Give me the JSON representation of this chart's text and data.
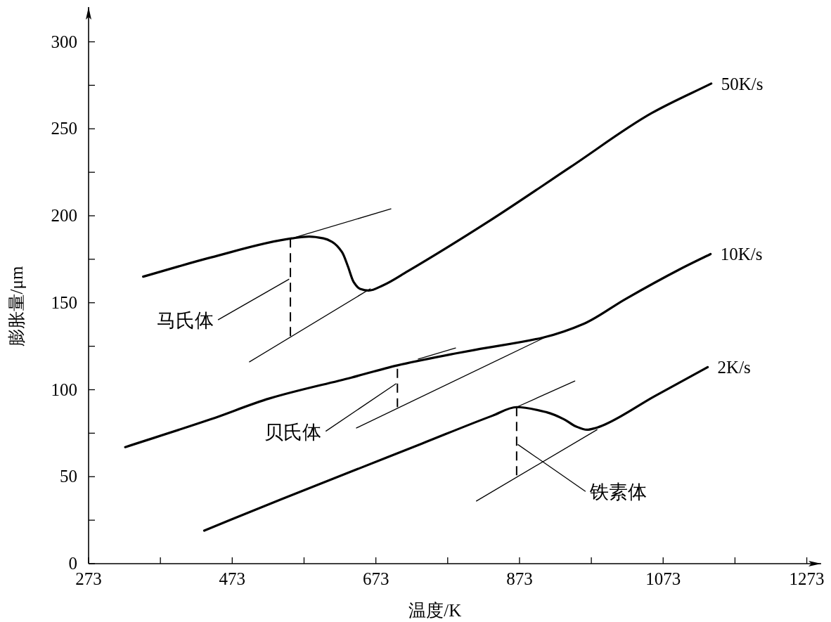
{
  "chart_data": {
    "type": "line",
    "xlabel": "温度/K",
    "ylabel": "膨胀量/μm",
    "xlim": [
      273,
      1293
    ],
    "ylim": [
      0,
      320
    ],
    "xticks": [
      273,
      {
        "value": 373,
        "label": null
      },
      473,
      {
        "value": 573,
        "label": null
      },
      673,
      {
        "value": 773,
        "label": null
      },
      873,
      {
        "value": 973,
        "label": null
      },
      1073,
      {
        "value": 1173,
        "label": null
      },
      1273
    ],
    "yticks": [
      0,
      {
        "value": 25,
        "label": null
      },
      50,
      {
        "value": 75,
        "label": null
      },
      100,
      {
        "value": 125,
        "label": null
      },
      150,
      {
        "value": 175,
        "label": null
      },
      200,
      {
        "value": 225,
        "label": null
      },
      250,
      {
        "value": 275,
        "label": null
      },
      300
    ],
    "grid": false,
    "legend": false,
    "marker": "none",
    "line_style": "solid",
    "annotations": [
      {
        "text": "马氏体",
        "x": 554,
        "y": 164
      },
      {
        "text": "贝氏体",
        "x": 703,
        "y": 104
      },
      {
        "text": "铁素体",
        "x": 869,
        "y": 69
      }
    ],
    "series": [
      {
        "name": "50K/s",
        "color": "#000000",
        "x": [
          349,
          443,
          556,
          580,
          600,
          612,
          626,
          634,
          642,
          651,
          663,
          683,
          717,
          831,
          944,
          1057,
          1140
        ],
        "values": [
          165,
          176,
          187,
          188,
          187,
          185,
          179,
          171,
          162,
          158,
          157,
          160,
          168,
          197,
          228,
          259,
          276
        ]
      },
      {
        "color": "#000000",
        "x": [
          556,
          694
        ],
        "values": [
          187,
          204
        ]
      },
      {
        "color": "#000000",
        "x": [
          497,
          665
        ],
        "values": [
          116,
          158
        ]
      },
      {
        "color": "#000000",
        "x": [
          554,
          554
        ],
        "values": [
          187,
          130
        ],
        "line_style": "dashed"
      },
      {
        "name": "10K/s",
        "color": "#000000",
        "x": [
          324,
          443,
          525,
          639,
          703,
          786,
          812,
          906,
          963,
          1020,
          1095,
          1139
        ],
        "values": [
          67,
          83,
          95,
          107,
          114,
          121,
          123,
          130,
          138,
          152,
          169,
          178
        ]
      },
      {
        "color": "#000000",
        "x": [
          732,
          784
        ],
        "values": [
          117.6,
          124
        ]
      },
      {
        "color": "#000000",
        "x": [
          646,
          908
        ],
        "values": [
          78,
          130
        ]
      },
      {
        "color": "#000000",
        "x": [
          703,
          703
        ],
        "values": [
          112,
          90
        ],
        "line_style": "dashed"
      },
      {
        "name": "2K/s",
        "color": "#000000",
        "x": [
          434,
          541,
          639,
          737,
          835,
          869,
          911,
          935,
          951,
          967,
          979,
          992,
          1060,
          1135
        ],
        "values": [
          19,
          37,
          53,
          69,
          85,
          90,
          87,
          83,
          79,
          77,
          78,
          80,
          96,
          113
        ]
      },
      {
        "color": "#000000",
        "x": [
          869,
          950
        ],
        "values": [
          90,
          105
        ]
      },
      {
        "color": "#000000",
        "x": [
          813,
          981
        ],
        "values": [
          36,
          77
        ]
      },
      {
        "color": "#000000",
        "x": [
          869,
          869
        ],
        "values": [
          90,
          50
        ],
        "line_style": "dashed"
      }
    ]
  }
}
